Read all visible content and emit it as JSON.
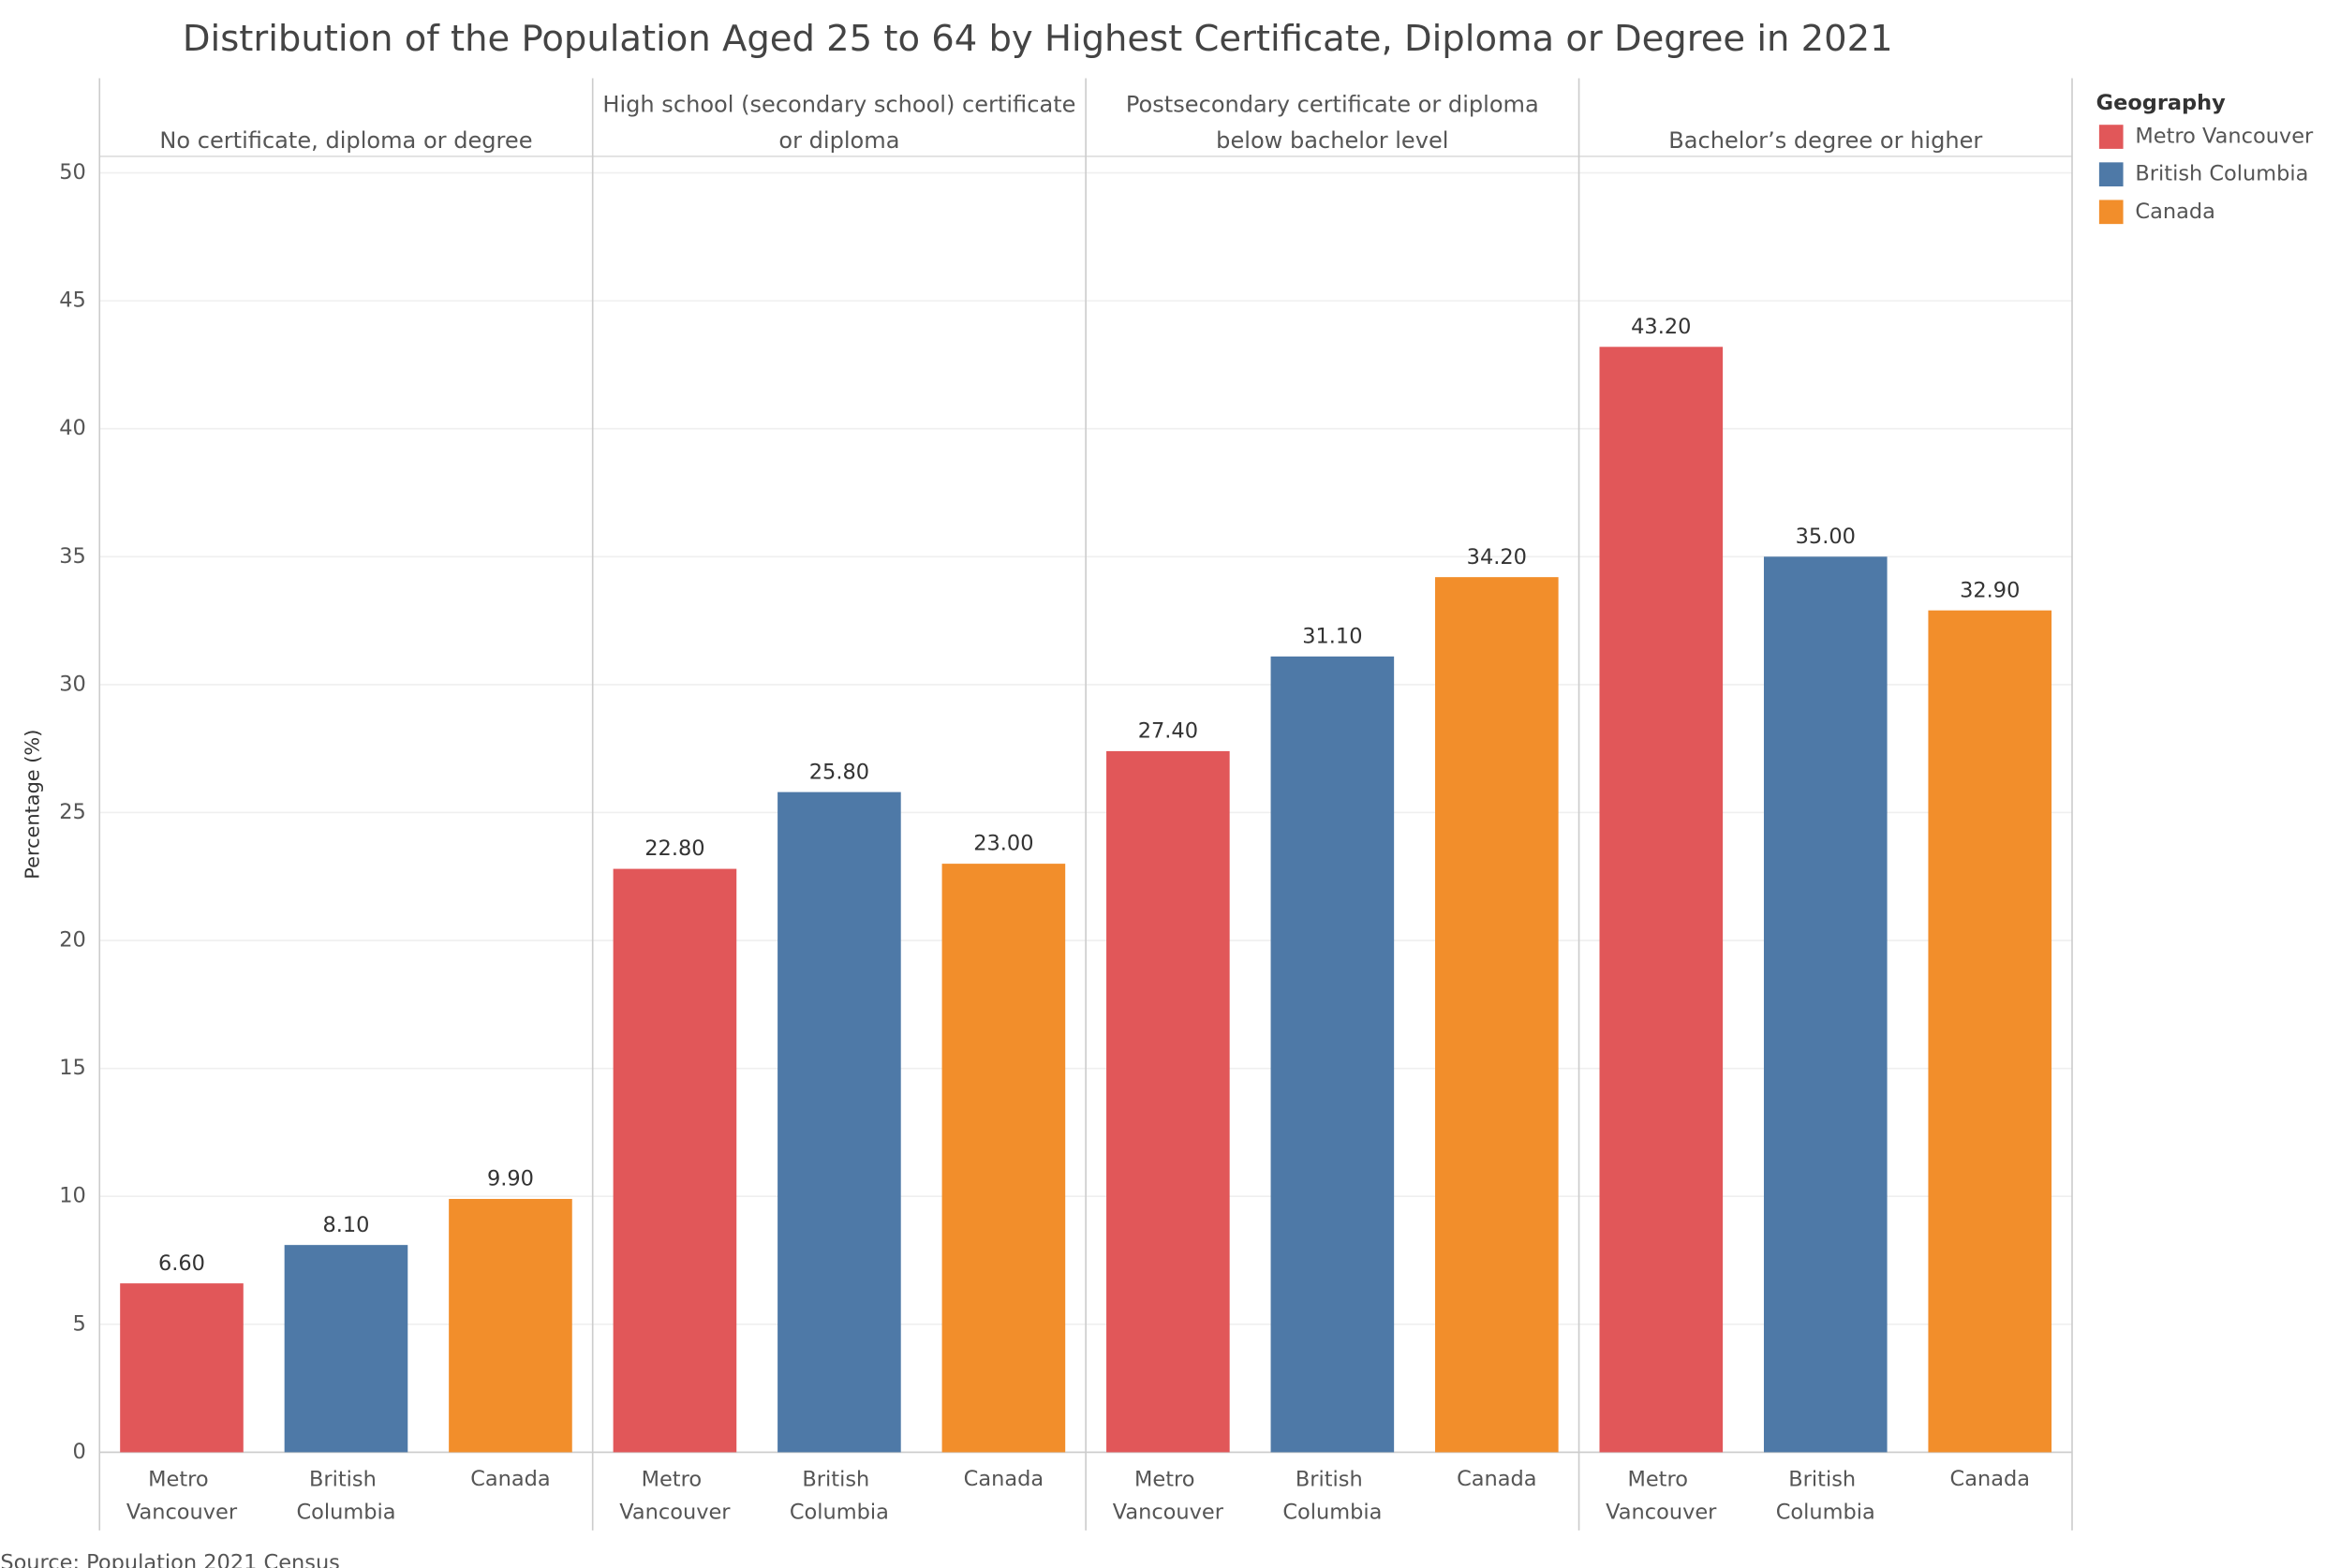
{
  "chart_data": {
    "type": "bar",
    "title": "Distribution of the Population Aged 25 to 64 by Highest Certificate, Diploma or Degree in 2021",
    "y_label": "Percentage (%)",
    "source": "Source: Population 2021 Census",
    "legend_title": "Geography",
    "legend": "right",
    "grid": true,
    "categories": [
      [
        "No certificate, diploma or degree"
      ],
      [
        "High school (secondary school) certificate",
        "or diploma"
      ],
      [
        "Postsecondary certificate or diploma",
        "below bachelor level"
      ],
      [
        "Bachelor’s degree or higher"
      ]
    ],
    "series": [
      {
        "name": "Metro Vancouver",
        "color": "#e15759",
        "values": [
          6.6,
          22.8,
          27.4,
          43.2
        ],
        "value_labels": [
          "6.60",
          "22.80",
          "27.40",
          "43.20"
        ]
      },
      {
        "name": "British Columbia",
        "color": "#4e79a7",
        "values": [
          8.1,
          25.8,
          31.1,
          35.0
        ],
        "value_labels": [
          "8.10",
          "25.80",
          "31.10",
          "35.00"
        ]
      },
      {
        "name": "Canada",
        "color": "#f28e2b",
        "values": [
          9.9,
          23.0,
          34.2,
          32.9
        ],
        "value_labels": [
          "9.90",
          "23.00",
          "34.20",
          "32.90"
        ]
      }
    ],
    "ylim": [
      0,
      53.7
    ],
    "yticks": [
      0,
      5,
      10,
      15,
      20,
      25,
      30,
      35,
      40,
      45,
      50
    ]
  }
}
